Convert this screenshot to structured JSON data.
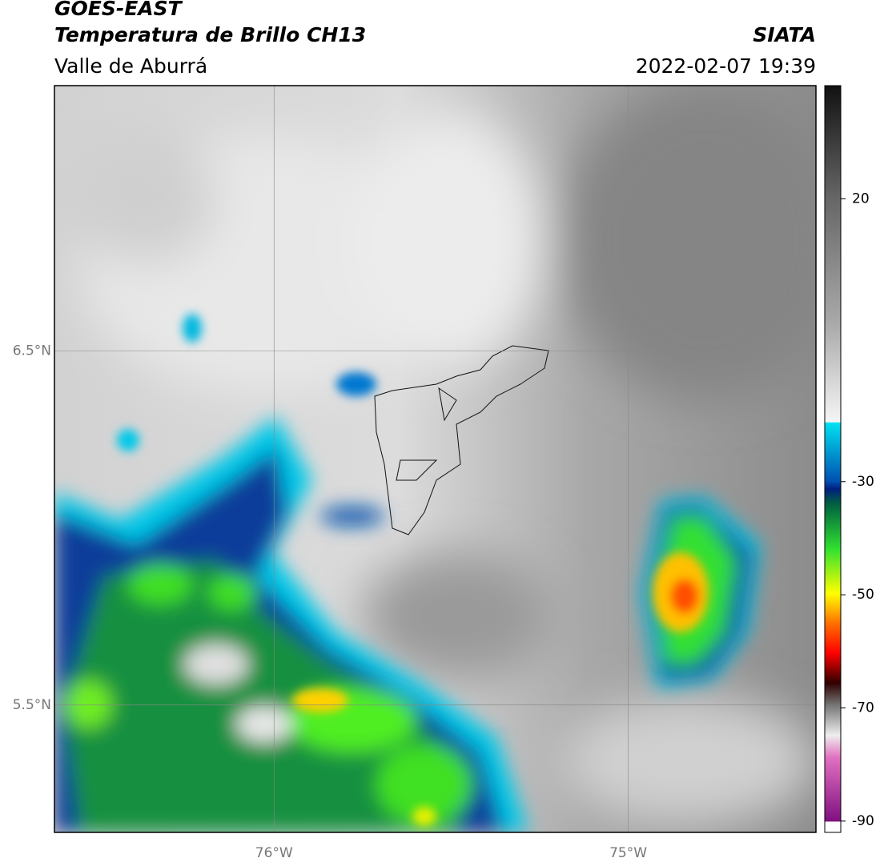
{
  "header": {
    "title": "GOES-EAST",
    "subtitle": "Temperatura de Brillo CH13",
    "region": "Valle de Aburrá",
    "agency": "SIATA",
    "datetime": "2022-02-07 19:39"
  },
  "map": {
    "latlim": [
      5.14,
      7.25
    ],
    "lonlim": [
      -76.62,
      -74.47
    ],
    "lat_ticks": [
      {
        "value": 6.5,
        "label": "6.5°N"
      },
      {
        "value": 5.5,
        "label": "5.5°N"
      }
    ],
    "lon_ticks": [
      {
        "value": -76,
        "label": "76°W"
      },
      {
        "value": -75,
        "label": "75°W"
      }
    ]
  },
  "colorbar": {
    "lim": [
      -92,
      40
    ],
    "ticks": [
      20,
      -30,
      -50,
      -70,
      -90
    ]
  }
}
